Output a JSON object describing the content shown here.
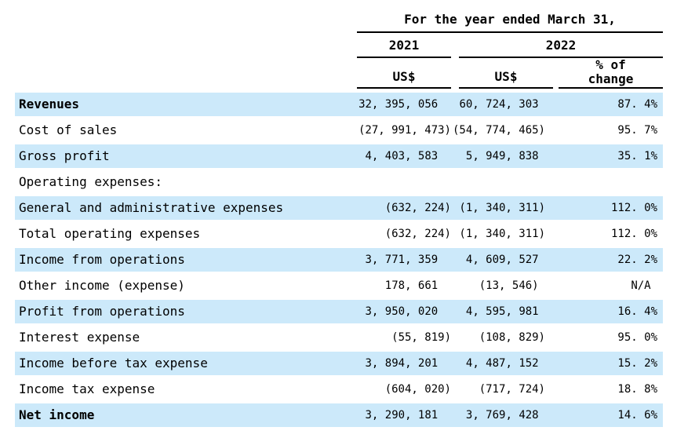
{
  "header": {
    "period_title": "For the year ended March 31,",
    "year_left": "2021",
    "year_right": "2022",
    "unit_2021": "US$",
    "unit_2022": "US$",
    "pct_change_line1": "% of",
    "pct_change_line2": "change"
  },
  "colors": {
    "row_highlight": "#cce9fa",
    "rule": "#000000",
    "text": "#000000"
  },
  "rows": [
    {
      "label": "Revenues",
      "us_2021": "32, 395, 056",
      "us_2022": "60, 724, 303",
      "pct_change": "87. 4%"
    },
    {
      "label": "Cost of sales",
      "us_2021": "(27, 991, 473)",
      "us_2022": "(54, 774, 465)",
      "pct_change": "95. 7%"
    },
    {
      "label": "Gross profit",
      "us_2021": "4, 403, 583",
      "us_2022": "5, 949, 838",
      "pct_change": "35. 1%"
    },
    {
      "label": "Operating expenses:",
      "us_2021": "",
      "us_2022": "",
      "pct_change": ""
    },
    {
      "label": "General and administrative expenses",
      "us_2021": "(632, 224)",
      "us_2022": "(1, 340, 311)",
      "pct_change": "112. 0%"
    },
    {
      "label": "Total operating expenses",
      "us_2021": "(632, 224)",
      "us_2022": "(1, 340, 311)",
      "pct_change": "112. 0%"
    },
    {
      "label": "Income from operations",
      "us_2021": "3, 771, 359",
      "us_2022": "4, 609, 527",
      "pct_change": "22. 2%"
    },
    {
      "label": "Other income (expense)",
      "us_2021": "178, 661",
      "us_2022": "(13, 546)",
      "pct_change": "N/A"
    },
    {
      "label": "Profit from operations",
      "us_2021": "3, 950, 020",
      "us_2022": "4, 595, 981",
      "pct_change": "16. 4%"
    },
    {
      "label": "Interest expense",
      "us_2021": "(55, 819)",
      "us_2022": "(108, 829)",
      "pct_change": "95. 0%"
    },
    {
      "label": "Income before tax expense",
      "us_2021": "3, 894, 201",
      "us_2022": "4, 487, 152",
      "pct_change": "15. 2%"
    },
    {
      "label": "Income tax expense",
      "us_2021": "(604, 020)",
      "us_2022": "(717, 724)",
      "pct_change": "18. 8%"
    },
    {
      "label": "Net income",
      "us_2021": "3, 290, 181",
      "us_2022": "3, 769, 428",
      "pct_change": "14. 6%"
    }
  ]
}
